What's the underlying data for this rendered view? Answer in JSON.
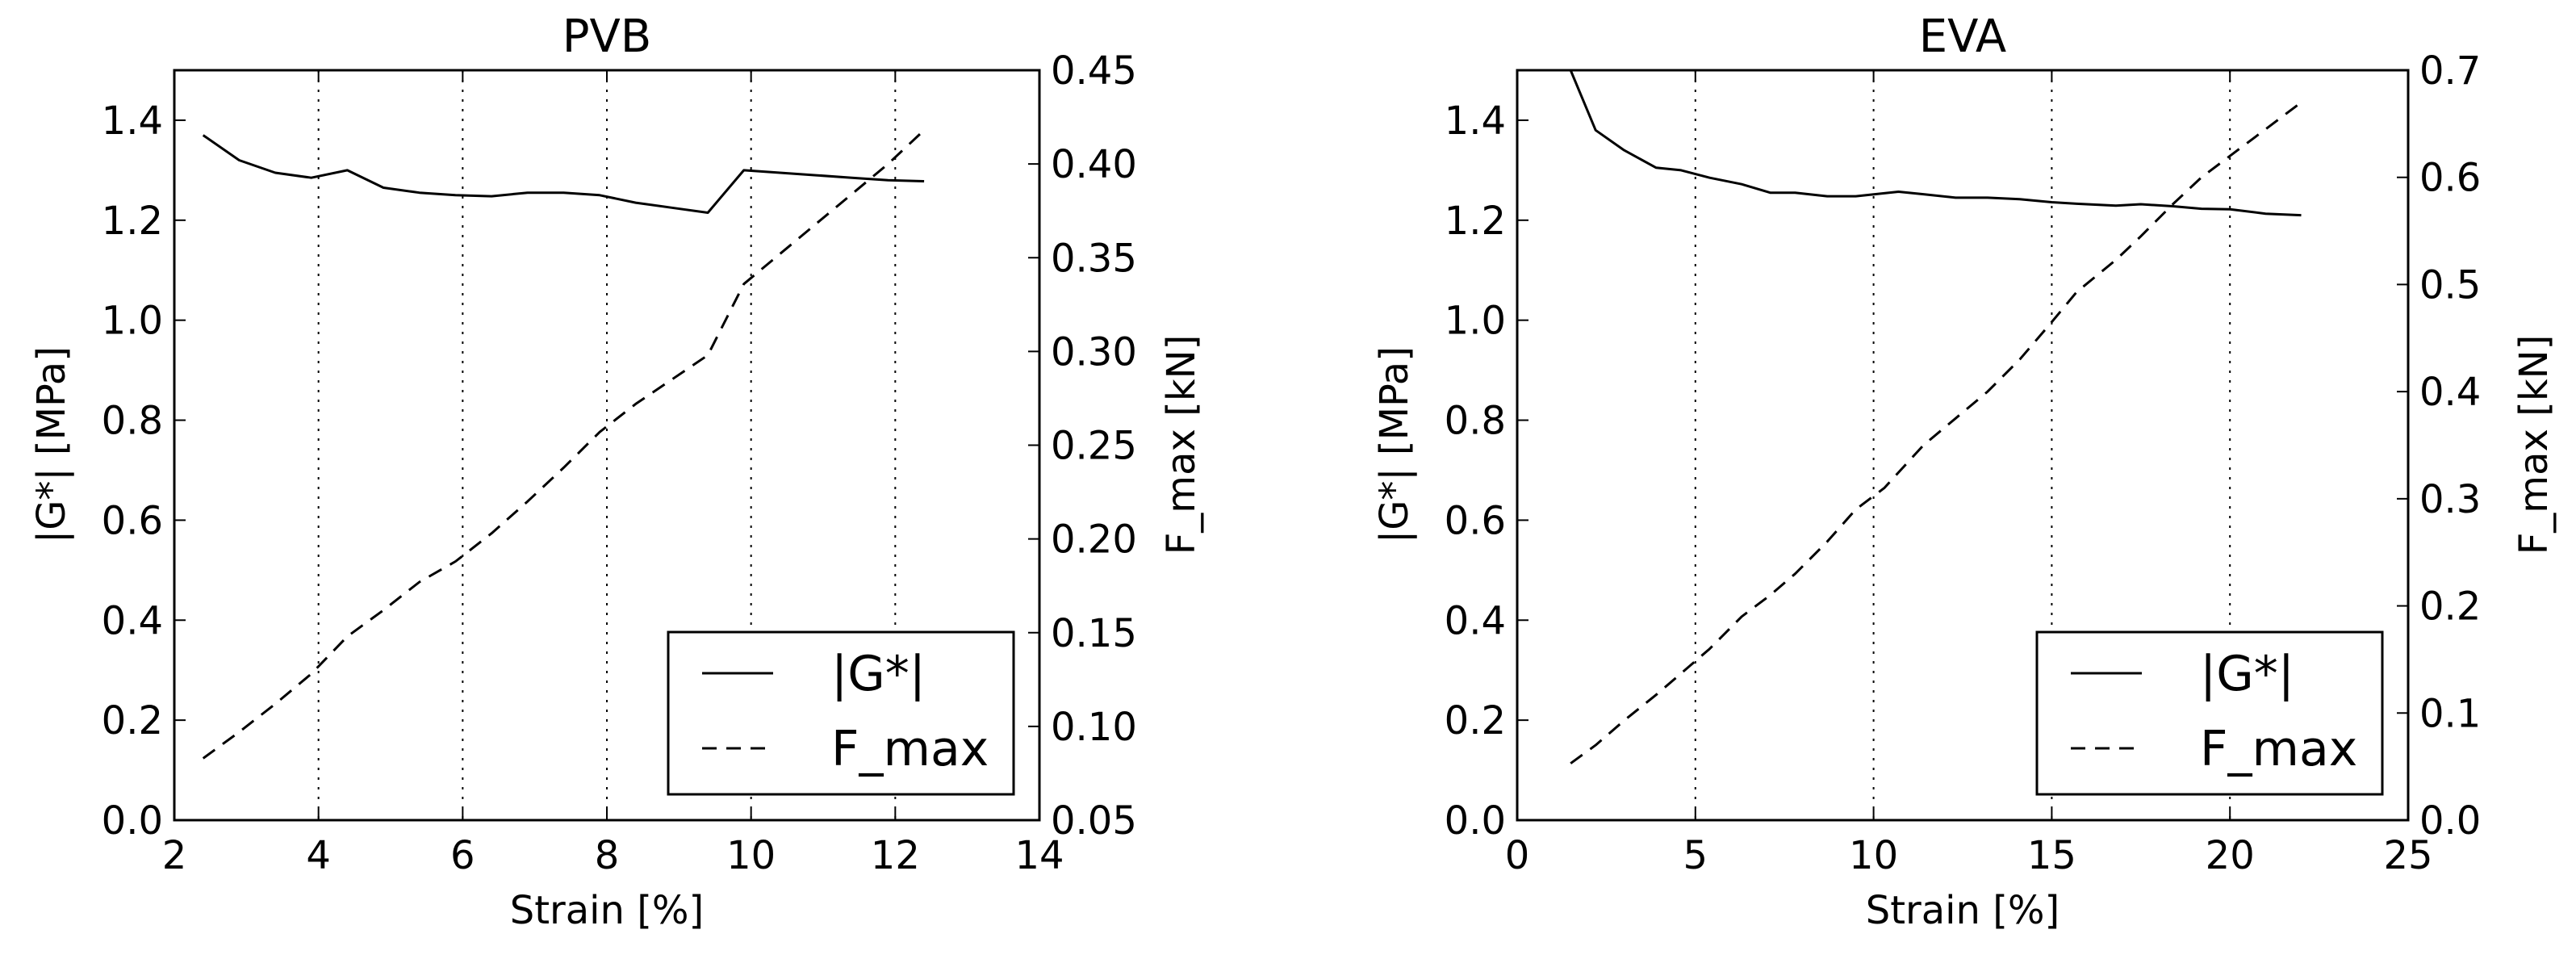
{
  "chart_data": [
    {
      "type": "line",
      "title": "PVB",
      "xlabel": "Strain [%]",
      "ylabel": "|G*| [MPa]",
      "y2label": "F_max [kN]",
      "xlim": [
        2,
        14
      ],
      "ylim": [
        0.0,
        1.5
      ],
      "y2lim": [
        0.05,
        0.45
      ],
      "xticks": [
        "2",
        "4",
        "6",
        "8",
        "10",
        "12",
        "14"
      ],
      "yticks": [
        "0.0",
        "0.2",
        "0.4",
        "0.6",
        "0.8",
        "1.0",
        "1.2",
        "1.4"
      ],
      "y2ticks": [
        "0.05",
        "0.10",
        "0.15",
        "0.20",
        "0.25",
        "0.30",
        "0.35",
        "0.40",
        "0.45"
      ],
      "vgrid_x": [
        4,
        6,
        8,
        10,
        12
      ],
      "legend_position": "bottom-right",
      "series": [
        {
          "name": "|G*|",
          "axis": "left",
          "style": "solid",
          "x": [
            2.4,
            2.9,
            3.4,
            3.9,
            4.4,
            4.9,
            5.4,
            5.9,
            6.4,
            6.9,
            7.4,
            7.9,
            8.4,
            8.9,
            9.4,
            9.9,
            10.4,
            10.9,
            11.4,
            11.9,
            12.4
          ],
          "y": [
            1.37,
            1.32,
            1.295,
            1.285,
            1.3,
            1.265,
            1.255,
            1.25,
            1.248,
            1.255,
            1.255,
            1.25,
            1.235,
            1.225,
            1.215,
            1.3,
            1.295,
            1.29,
            1.285,
            1.28,
            1.278
          ]
        },
        {
          "name": "F_max",
          "axis": "right",
          "style": "dashed",
          "x": [
            2.4,
            2.9,
            3.4,
            3.9,
            4.4,
            4.9,
            5.4,
            5.9,
            6.4,
            6.9,
            7.4,
            7.9,
            8.4,
            8.9,
            9.4,
            9.9,
            10.4,
            10.9,
            11.4,
            11.9,
            12.4
          ],
          "y": [
            0.083,
            0.097,
            0.112,
            0.128,
            0.148,
            0.162,
            0.177,
            0.188,
            0.203,
            0.22,
            0.238,
            0.257,
            0.272,
            0.285,
            0.298,
            0.336,
            0.352,
            0.368,
            0.384,
            0.4,
            0.418
          ]
        }
      ]
    },
    {
      "type": "line",
      "title": "EVA",
      "xlabel": "Strain [%]",
      "ylabel": "|G*| [MPa]",
      "y2label": "F_max [kN]",
      "xlim": [
        0,
        25
      ],
      "ylim": [
        0.0,
        1.5
      ],
      "y2lim": [
        0.0,
        0.7
      ],
      "xticks": [
        "0",
        "5",
        "10",
        "15",
        "20",
        "25"
      ],
      "yticks": [
        "0.0",
        "0.2",
        "0.4",
        "0.6",
        "0.8",
        "1.0",
        "1.2",
        "1.4"
      ],
      "y2ticks": [
        "0.0",
        "0.1",
        "0.2",
        "0.3",
        "0.4",
        "0.5",
        "0.6",
        "0.7"
      ],
      "vgrid_x": [
        5,
        10,
        15,
        20
      ],
      "legend_position": "bottom-right",
      "series": [
        {
          "name": "|G*|",
          "axis": "left",
          "style": "solid",
          "x": [
            1.5,
            2.2,
            3.0,
            3.9,
            4.6,
            5.4,
            6.3,
            7.1,
            7.8,
            8.7,
            9.5,
            10.7,
            11.4,
            12.3,
            13.2,
            14.1,
            15.0,
            15.7,
            16.8,
            17.5,
            18.4,
            19.2,
            20.0,
            21.0,
            22.0
          ],
          "y": [
            1.5,
            1.38,
            1.34,
            1.305,
            1.3,
            1.285,
            1.272,
            1.255,
            1.255,
            1.248,
            1.248,
            1.257,
            1.252,
            1.245,
            1.245,
            1.242,
            1.236,
            1.233,
            1.229,
            1.232,
            1.228,
            1.223,
            1.222,
            1.213,
            1.21
          ]
        },
        {
          "name": "F_max",
          "axis": "right",
          "style": "dashed",
          "x": [
            1.5,
            2.2,
            3.0,
            3.9,
            4.6,
            5.4,
            6.3,
            7.1,
            7.8,
            8.7,
            9.5,
            10.3,
            11.4,
            12.3,
            13.2,
            14.1,
            15.0,
            15.7,
            16.8,
            17.5,
            18.4,
            19.2,
            20.0,
            21.0,
            22.0
          ],
          "y": [
            0.053,
            0.07,
            0.093,
            0.117,
            0.137,
            0.16,
            0.19,
            0.21,
            0.23,
            0.26,
            0.29,
            0.31,
            0.35,
            0.375,
            0.4,
            0.43,
            0.465,
            0.493,
            0.523,
            0.545,
            0.575,
            0.6,
            0.62,
            0.645,
            0.67
          ]
        }
      ]
    }
  ]
}
